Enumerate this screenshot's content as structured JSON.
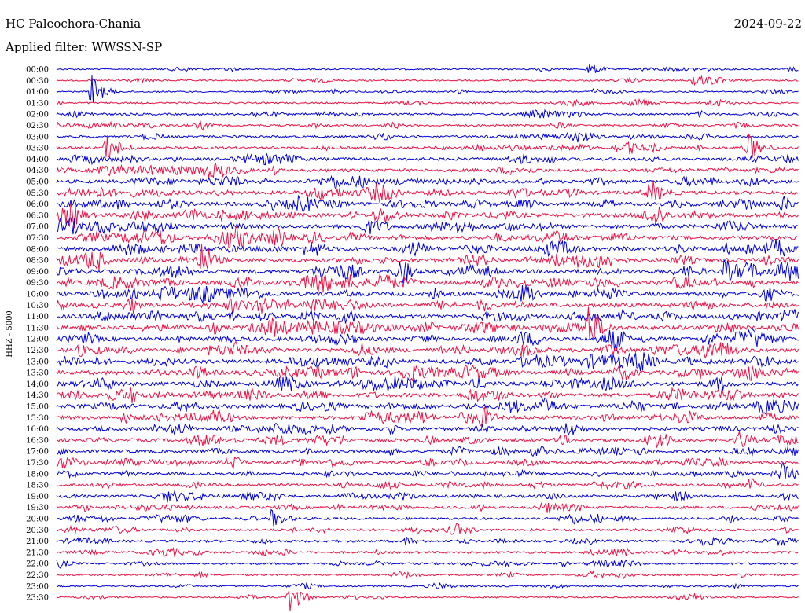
{
  "header": {
    "station": "HC Paleochora-Chania",
    "date": "2024-09-22",
    "filter": "Applied filter: WWSSN-SP"
  },
  "chart_data": {
    "type": "line",
    "title": "HC Paleochora-Chania",
    "ylabel": "HHZ - 5000",
    "row_labels": [
      "00:00",
      "00:30",
      "01:00",
      "01:30",
      "02:00",
      "02:30",
      "03:00",
      "03:30",
      "04:00",
      "04:30",
      "05:00",
      "05:30",
      "06:00",
      "06:30",
      "07:00",
      "07:30",
      "08:00",
      "08:30",
      "09:00",
      "09:30",
      "10:00",
      "10:30",
      "11:00",
      "11:30",
      "12:00",
      "12:30",
      "13:00",
      "13:30",
      "14:00",
      "14:30",
      "15:00",
      "15:30",
      "16:00",
      "16:30",
      "17:00",
      "17:30",
      "18:00",
      "18:30",
      "19:00",
      "19:30",
      "20:00",
      "20:30",
      "21:00",
      "21:30",
      "22:00",
      "22:30",
      "23:00",
      "23:30"
    ],
    "trace_colors": [
      "#0000dd",
      "#ee1144"
    ],
    "row_noise_level": [
      0.15,
      0.15,
      0.15,
      0.2,
      0.3,
      0.3,
      0.35,
      0.45,
      0.55,
      0.6,
      0.65,
      0.7,
      0.75,
      0.8,
      0.8,
      0.8,
      0.85,
      0.85,
      0.85,
      0.85,
      0.85,
      0.85,
      0.85,
      0.85,
      0.85,
      0.85,
      0.85,
      0.85,
      0.8,
      0.8,
      0.8,
      0.75,
      0.7,
      0.65,
      0.6,
      0.55,
      0.5,
      0.5,
      0.45,
      0.45,
      0.4,
      0.4,
      0.4,
      0.35,
      0.3,
      0.25,
      0.2,
      0.15
    ],
    "events": [
      {
        "row": 0,
        "minute": 21.5,
        "amplitude": 0.8
      },
      {
        "row": 1,
        "minute": 25.7,
        "amplitude": 1.0
      },
      {
        "row": 2,
        "minute": 1.4,
        "amplitude": 2.2
      },
      {
        "row": 7,
        "minute": 2.0,
        "amplitude": 1.6
      },
      {
        "row": 7,
        "minute": 28.0,
        "amplitude": 1.6
      },
      {
        "row": 11,
        "minute": 24.0,
        "amplitude": 1.2
      },
      {
        "row": 17,
        "minute": 5.8,
        "amplitude": 1.5
      },
      {
        "row": 18,
        "minute": 27.0,
        "amplitude": 1.4
      },
      {
        "row": 19,
        "minute": 13.0,
        "amplitude": 1.6
      },
      {
        "row": 23,
        "minute": 21.5,
        "amplitude": 2.4
      },
      {
        "row": 26,
        "minute": 23.5,
        "amplitude": 1.2
      },
      {
        "row": 33,
        "minute": 27.5,
        "amplitude": 1.3
      },
      {
        "row": 36,
        "minute": 29.2,
        "amplitude": 1.4
      },
      {
        "row": 40,
        "minute": 8.7,
        "amplitude": 1.2
      },
      {
        "row": 47,
        "minute": 9.4,
        "amplitude": 2.2
      }
    ]
  }
}
